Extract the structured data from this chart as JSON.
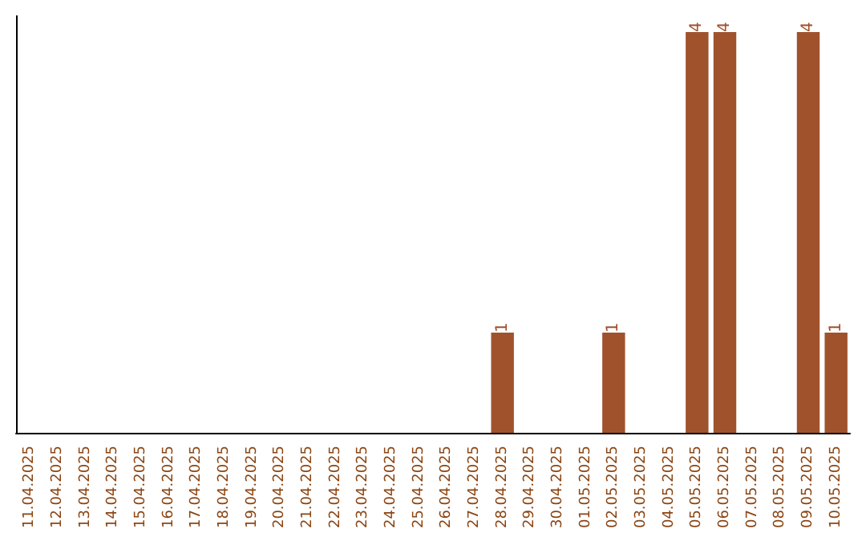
{
  "chart_data": {
    "type": "bar",
    "categories": [
      "11.04.2025",
      "12.04.2025",
      "13.04.2025",
      "14.04.2025",
      "15.04.2025",
      "16.04.2025",
      "17.04.2025",
      "18.04.2025",
      "19.04.2025",
      "20.04.2025",
      "21.04.2025",
      "22.04.2025",
      "23.04.2025",
      "24.04.2025",
      "25.04.2025",
      "26.04.2025",
      "27.04.2025",
      "28.04.2025",
      "29.04.2025",
      "30.04.2025",
      "01.05.2025",
      "02.05.2025",
      "03.05.2025",
      "04.05.2025",
      "05.05.2025",
      "06.05.2025",
      "07.05.2025",
      "08.05.2025",
      "09.05.2025",
      "10.05.2025"
    ],
    "values": [
      null,
      null,
      null,
      null,
      null,
      null,
      null,
      null,
      null,
      null,
      null,
      null,
      null,
      null,
      null,
      null,
      null,
      1,
      null,
      null,
      null,
      1,
      null,
      null,
      4,
      4,
      null,
      null,
      4,
      1
    ],
    "data_labels": true,
    "color": "#a0522d",
    "grid": false,
    "tick_labels": "x"
  }
}
